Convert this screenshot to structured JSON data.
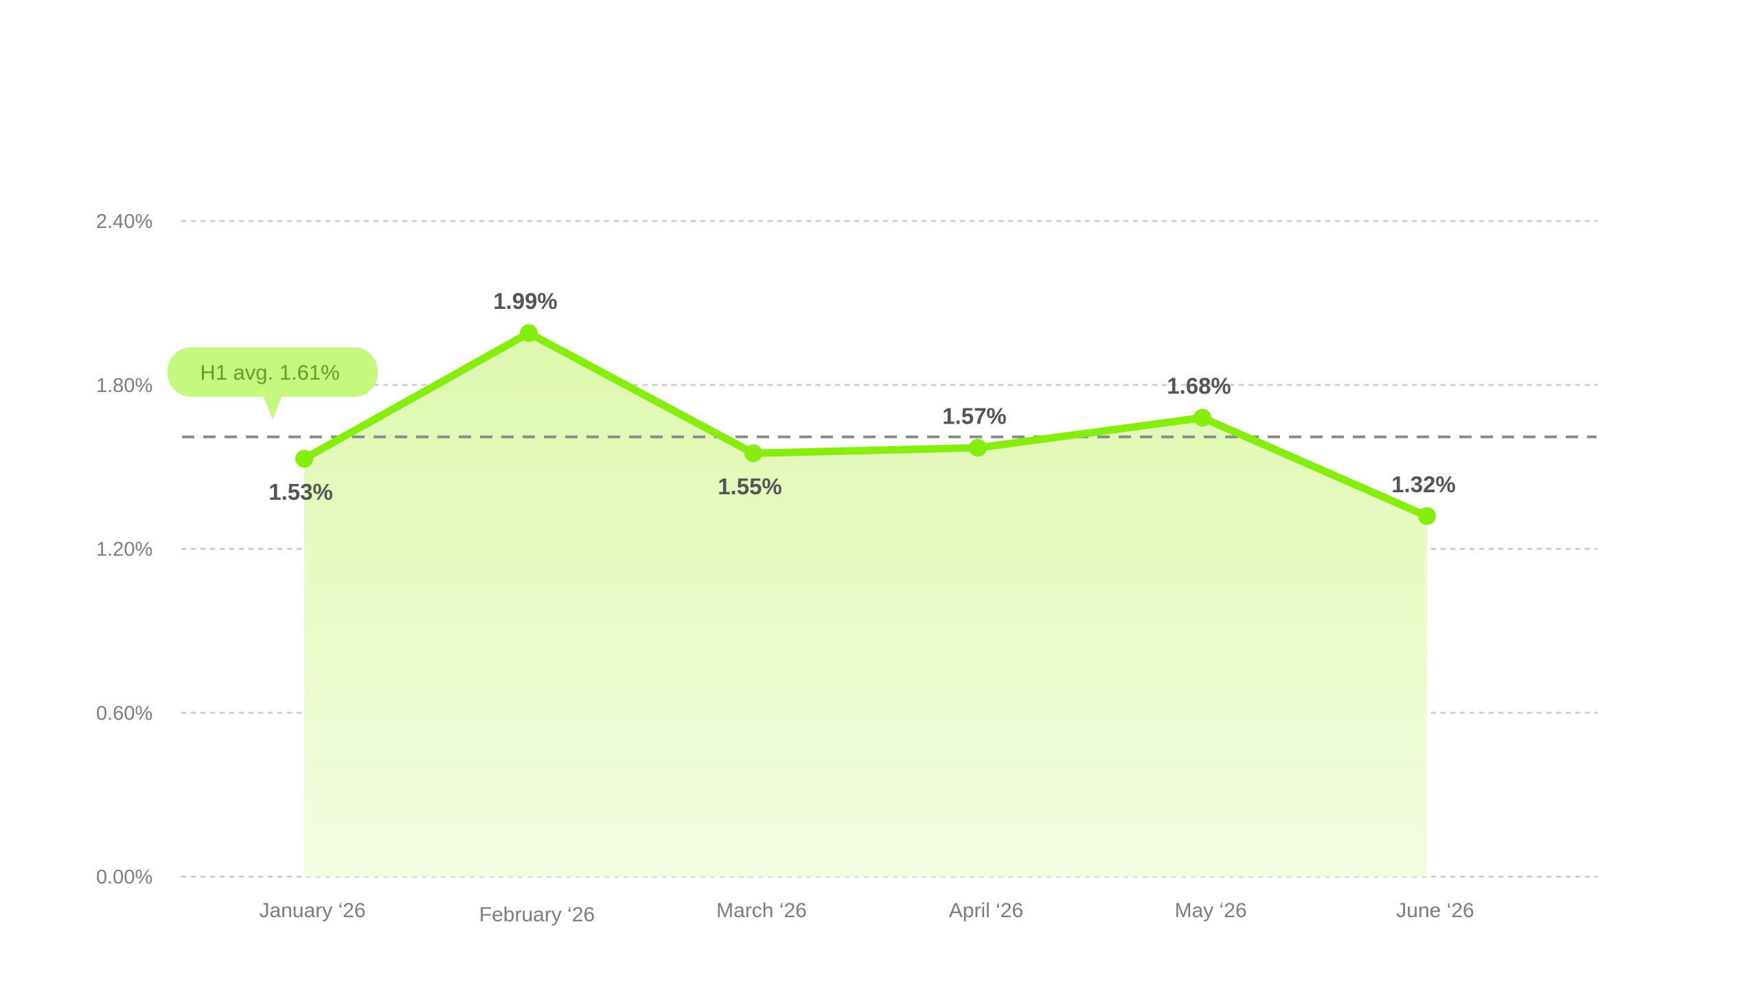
{
  "chart_data": {
    "type": "area",
    "categories": [
      "January ‘26",
      "February ‘26",
      "March ‘26",
      "April ‘26",
      "May ‘26",
      "June ‘26"
    ],
    "series": [
      {
        "values": [
          1.53,
          1.99,
          1.55,
          1.57,
          1.68,
          1.32
        ],
        "value_labels": [
          "1.53%",
          "1.99%",
          "1.55%",
          "1.57%",
          "1.68%",
          "1.32%"
        ]
      }
    ],
    "ylim": [
      0,
      2.4
    ],
    "yticks": [
      0,
      0.6,
      1.2,
      1.8,
      2.4
    ],
    "ytick_labels": [
      "0.00%",
      "0.60%",
      "1.20%",
      "1.80%",
      "2.40%"
    ],
    "reference_line": {
      "value": 1.61,
      "label": "H1 avg. 1.61%"
    },
    "grid": true,
    "legend": "none",
    "colors": {
      "line": "#86ee0c",
      "area_top": "#ddf8ad",
      "area_bottom": "#f3fde1",
      "avg_badge": "#c6f77f"
    }
  }
}
